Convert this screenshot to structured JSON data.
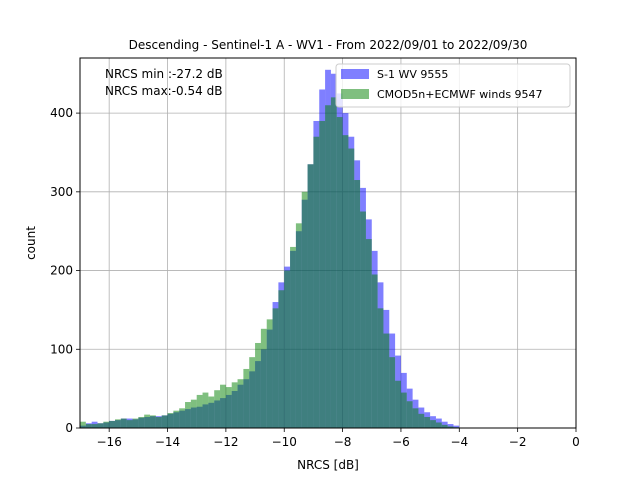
{
  "chart_data": {
    "type": "histogram",
    "title": "Descending - Sentinel-1 A - WV1 - From 2022/09/01 to 2022/09/30",
    "xlabel": "NRCS [dB]",
    "ylabel": "count",
    "xlim": [
      -17.0,
      0.0
    ],
    "ylim": [
      0,
      470
    ],
    "xticks": [
      -16,
      -14,
      -12,
      -10,
      -8,
      -6,
      -4,
      -2,
      0
    ],
    "xtick_labels": [
      "−16",
      "−14",
      "−12",
      "−10",
      "−8",
      "−6",
      "−4",
      "−2",
      "0"
    ],
    "yticks": [
      0,
      100,
      200,
      300,
      400
    ],
    "ytick_labels": [
      "0",
      "100",
      "200",
      "300",
      "400"
    ],
    "grid": true,
    "legend_position": "top-right",
    "annotations": [
      "NRCS min :-27.2 dB",
      "NRCS max:-0.54 dB"
    ],
    "bin_edges_start": -17.0,
    "bin_width": 0.2,
    "series": [
      {
        "name": "S-1 WV 9555",
        "color": "#0000ff",
        "opacity": 0.5,
        "values": [
          3,
          6,
          8,
          6,
          7,
          9,
          10,
          12,
          12,
          11,
          13,
          14,
          15,
          15,
          16,
          18,
          20,
          22,
          24,
          26,
          27,
          30,
          32,
          35,
          38,
          42,
          47,
          55,
          62,
          72,
          85,
          100,
          125,
          160,
          185,
          205,
          225,
          250,
          290,
          335,
          390,
          430,
          455,
          450,
          425,
          400,
          370,
          340,
          305,
          265,
          225,
          185,
          150,
          120,
          92,
          70,
          50,
          36,
          26,
          20,
          15,
          12,
          8,
          5,
          3
        ]
      },
      {
        "name": "CMOD5n+ECMWF winds 9547",
        "color": "#008000",
        "opacity": 0.5,
        "values": [
          8,
          5,
          5,
          6,
          8,
          9,
          11,
          12,
          10,
          12,
          14,
          17,
          16,
          14,
          16,
          19,
          22,
          25,
          33,
          36,
          42,
          45,
          40,
          48,
          55,
          52,
          58,
          62,
          75,
          90,
          108,
          126,
          138,
          152,
          175,
          200,
          230,
          260,
          300,
          335,
          370,
          390,
          410,
          420,
          395,
          372,
          355,
          315,
          275,
          240,
          195,
          152,
          120,
          90,
          60,
          45,
          34,
          25,
          18,
          14,
          10,
          7,
          4,
          2,
          1
        ]
      }
    ]
  }
}
